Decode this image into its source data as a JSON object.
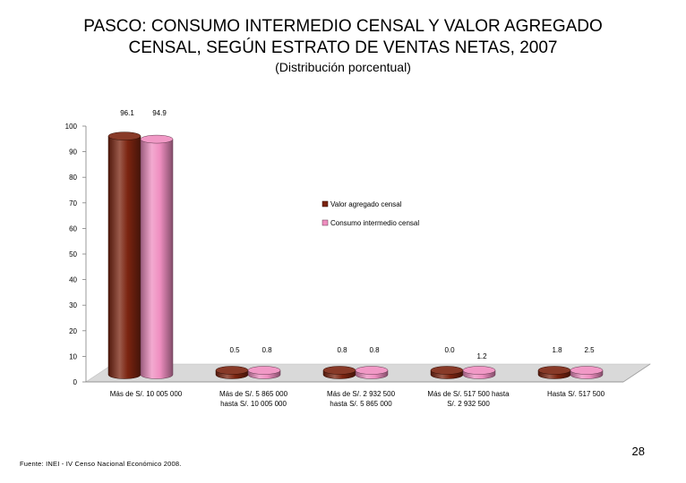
{
  "slide": {
    "title_line1": "PASCO: CONSUMO INTERMEDIO CENSAL Y VALOR AGREGADO",
    "title_line2": "CENSAL, SEGÚN ESTRATO DE VENTAS NETAS, 2007",
    "subtitle": "(Distribución porcentual)",
    "page_number": "28",
    "source": "Fuente: INEI - IV Censo Nacional Económico 2008."
  },
  "chart_data": {
    "type": "bar",
    "title": "PASCO: CONSUMO INTERMEDIO CENSAL Y VALOR AGREGADO CENSAL, SEGÚN ESTRATO DE VENTAS NETAS, 2007",
    "subtitle": "(Distribución porcentual)",
    "categories": [
      [
        "Más de S/. 10 005 000"
      ],
      [
        "Más de S/. 5 865 000",
        "hasta  S/. 10 005 000"
      ],
      [
        "Más de S/. 2 932 500",
        "hasta  S/. 5 865 000"
      ],
      [
        "Más de S/. 517 500  hasta",
        "S/. 2 932 500"
      ],
      [
        "Hasta S/. 517 500"
      ]
    ],
    "series": [
      {
        "name": "Valor agregado censal",
        "values": [
          96.1,
          0.5,
          0.8,
          0.0,
          1.8
        ],
        "color": "#7b2410"
      },
      {
        "name": "Consumo intermedio censal",
        "values": [
          94.9,
          0.8,
          0.8,
          1.2,
          2.5
        ],
        "color": "#ef8ec0"
      }
    ],
    "data_labels": [
      [
        "96.1",
        "0.5",
        "0.8",
        "0.0",
        "1.8"
      ],
      [
        "94.9",
        "0.8",
        "0.8",
        "1.2",
        "2.5"
      ]
    ],
    "y_ticks": [
      "0",
      "10",
      "20",
      "30",
      "40",
      "50",
      "60",
      "70",
      "80",
      "90",
      "100"
    ],
    "ylim": [
      0,
      100
    ],
    "xlabel": "",
    "ylabel": "",
    "grid": false,
    "legend_position": "middle-right",
    "style": "3d-cylinder"
  }
}
